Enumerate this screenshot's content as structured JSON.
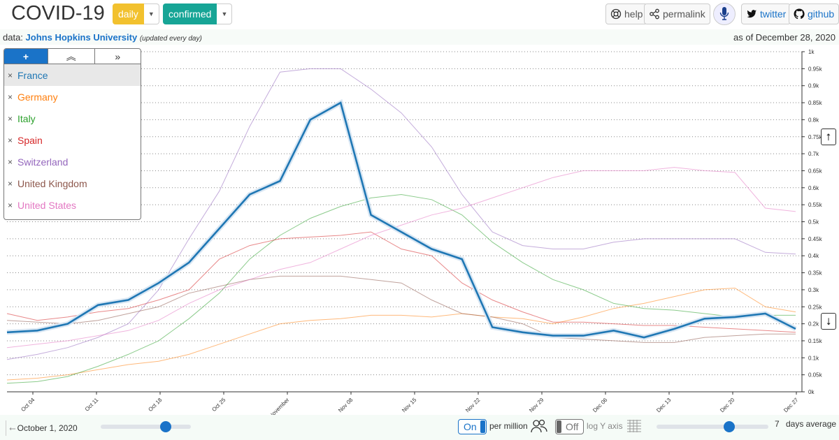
{
  "header": {
    "title": "COVID-19",
    "mode_label": "daily",
    "metric_label": "confirmed",
    "help_label": "help",
    "permalink_label": "permalink",
    "twitter_label": "twitter",
    "github_label": "github"
  },
  "source": {
    "prefix": "data:",
    "name": "Johns Hopkins University",
    "note": "(updated every day)",
    "as_of": "as of December 28, 2020"
  },
  "legend": {
    "add_label": "+",
    "items": [
      {
        "name": "France",
        "color": "#1f77b4"
      },
      {
        "name": "Germany",
        "color": "#ff7f0e"
      },
      {
        "name": "Italy",
        "color": "#2ca02c"
      },
      {
        "name": "Spain",
        "color": "#d62728"
      },
      {
        "name": "Switzerland",
        "color": "#9467bd"
      },
      {
        "name": "United Kingdom",
        "color": "#8c564b"
      },
      {
        "name": "United States",
        "color": "#e377c2"
      }
    ],
    "remove_glyph": "×"
  },
  "controls": {
    "start_date": "October 1, 2020",
    "start_slider_value": 0.72,
    "per_million_state": "On",
    "per_million_label": "per million",
    "log_state": "Off",
    "log_label": "log Y axis",
    "average_value": "7",
    "average_label": "days average",
    "average_slider_value": 0.65
  },
  "icons": {
    "help": "lifebuoy-icon",
    "permalink": "share-icon",
    "mic": "microphone-icon",
    "twitter": "twitter-icon",
    "github": "github-icon",
    "per_million": "people-icon",
    "log": "grid-icon"
  },
  "chart_data": {
    "type": "line",
    "title": "",
    "xlabel": "",
    "ylabel": "",
    "ylim": [
      0,
      1000
    ],
    "y_ticks": [
      "0k",
      "0.05k",
      "0.1k",
      "0.15k",
      "0.2k",
      "0.25k",
      "0.3k",
      "0.35k",
      "0.4k",
      "0.45k",
      "0.5k",
      "0.55k",
      "0.6k",
      "0.65k",
      "0.7k",
      "0.75k",
      "0.8k",
      "0.85k",
      "0.9k",
      "0.95k",
      "1k"
    ],
    "x_ticks": [
      "Oct 04",
      "Oct 11",
      "Oct 18",
      "Oct 25",
      "November",
      "Nov 08",
      "Nov 15",
      "Nov 22",
      "Nov 29",
      "Dec 06",
      "Dec 13",
      "Dec 20",
      "Dec 27"
    ],
    "x": [
      "Oct 01",
      "Oct 04",
      "Oct 08",
      "Oct 11",
      "Oct 15",
      "Oct 18",
      "Oct 22",
      "Oct 25",
      "Oct 29",
      "November",
      "Nov 05",
      "Nov 08",
      "Nov 12",
      "Nov 15",
      "Nov 19",
      "Nov 22",
      "Nov 26",
      "Nov 29",
      "Dec 03",
      "Dec 06",
      "Dec 10",
      "Dec 13",
      "Dec 17",
      "Dec 20",
      "Dec 24",
      "Dec 27",
      "Dec 28"
    ],
    "series": [
      {
        "name": "France",
        "highlight": true,
        "values": [
          175,
          180,
          200,
          255,
          270,
          320,
          380,
          480,
          580,
          620,
          800,
          850,
          520,
          470,
          420,
          390,
          190,
          175,
          165,
          165,
          180,
          160,
          185,
          215,
          220,
          230,
          185
        ]
      },
      {
        "name": "Germany",
        "values": [
          35,
          40,
          50,
          65,
          80,
          90,
          110,
          140,
          170,
          200,
          210,
          215,
          225,
          225,
          220,
          230,
          220,
          215,
          200,
          220,
          245,
          260,
          280,
          300,
          305,
          250,
          235
        ]
      },
      {
        "name": "Italy",
        "values": [
          25,
          30,
          45,
          75,
          110,
          150,
          215,
          290,
          390,
          460,
          510,
          545,
          570,
          580,
          565,
          520,
          440,
          380,
          330,
          300,
          260,
          245,
          240,
          230,
          220,
          225,
          225
        ]
      },
      {
        "name": "Spain",
        "values": [
          230,
          210,
          220,
          235,
          245,
          270,
          300,
          390,
          430,
          450,
          455,
          460,
          470,
          420,
          400,
          320,
          270,
          235,
          205,
          205,
          200,
          195,
          195,
          190,
          185,
          180,
          175
        ]
      },
      {
        "name": "Switzerland",
        "values": [
          95,
          110,
          130,
          160,
          200,
          300,
          450,
          590,
          780,
          940,
          950,
          950,
          890,
          820,
          720,
          580,
          470,
          430,
          420,
          420,
          440,
          450,
          450,
          450,
          450,
          410,
          405
        ]
      },
      {
        "name": "United Kingdom",
        "values": [
          210,
          205,
          200,
          210,
          230,
          250,
          290,
          310,
          330,
          340,
          340,
          340,
          330,
          320,
          270,
          230,
          220,
          200,
          160,
          155,
          150,
          145,
          145,
          160,
          165,
          170,
          170
        ]
      },
      {
        "name": "United States",
        "values": [
          130,
          140,
          150,
          165,
          180,
          210,
          260,
          300,
          330,
          360,
          380,
          420,
          460,
          490,
          520,
          540,
          570,
          600,
          630,
          650,
          650,
          650,
          660,
          650,
          645,
          540,
          530
        ]
      }
    ]
  }
}
